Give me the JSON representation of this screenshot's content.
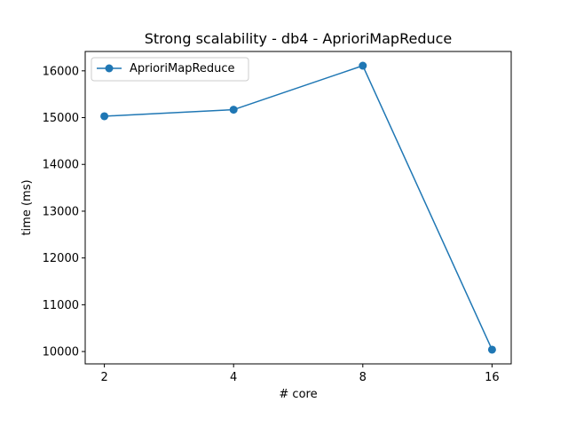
{
  "chart_data": {
    "type": "line",
    "title": "Strong scalability - db4 - AprioriMapReduce",
    "xlabel": "# core",
    "ylabel": "time (ms)",
    "x_categories": [
      "2",
      "4",
      "8",
      "16"
    ],
    "series": [
      {
        "name": "AprioriMapReduce",
        "values": [
          15030,
          15170,
          16110,
          10040
        ],
        "color": "#1f77b4",
        "marker": "circle"
      }
    ],
    "y_ticks": [
      10000,
      11000,
      12000,
      13000,
      14000,
      15000,
      16000
    ],
    "ylim": [
      9736,
      16414
    ],
    "legend_position": "top-left",
    "grid": false
  }
}
